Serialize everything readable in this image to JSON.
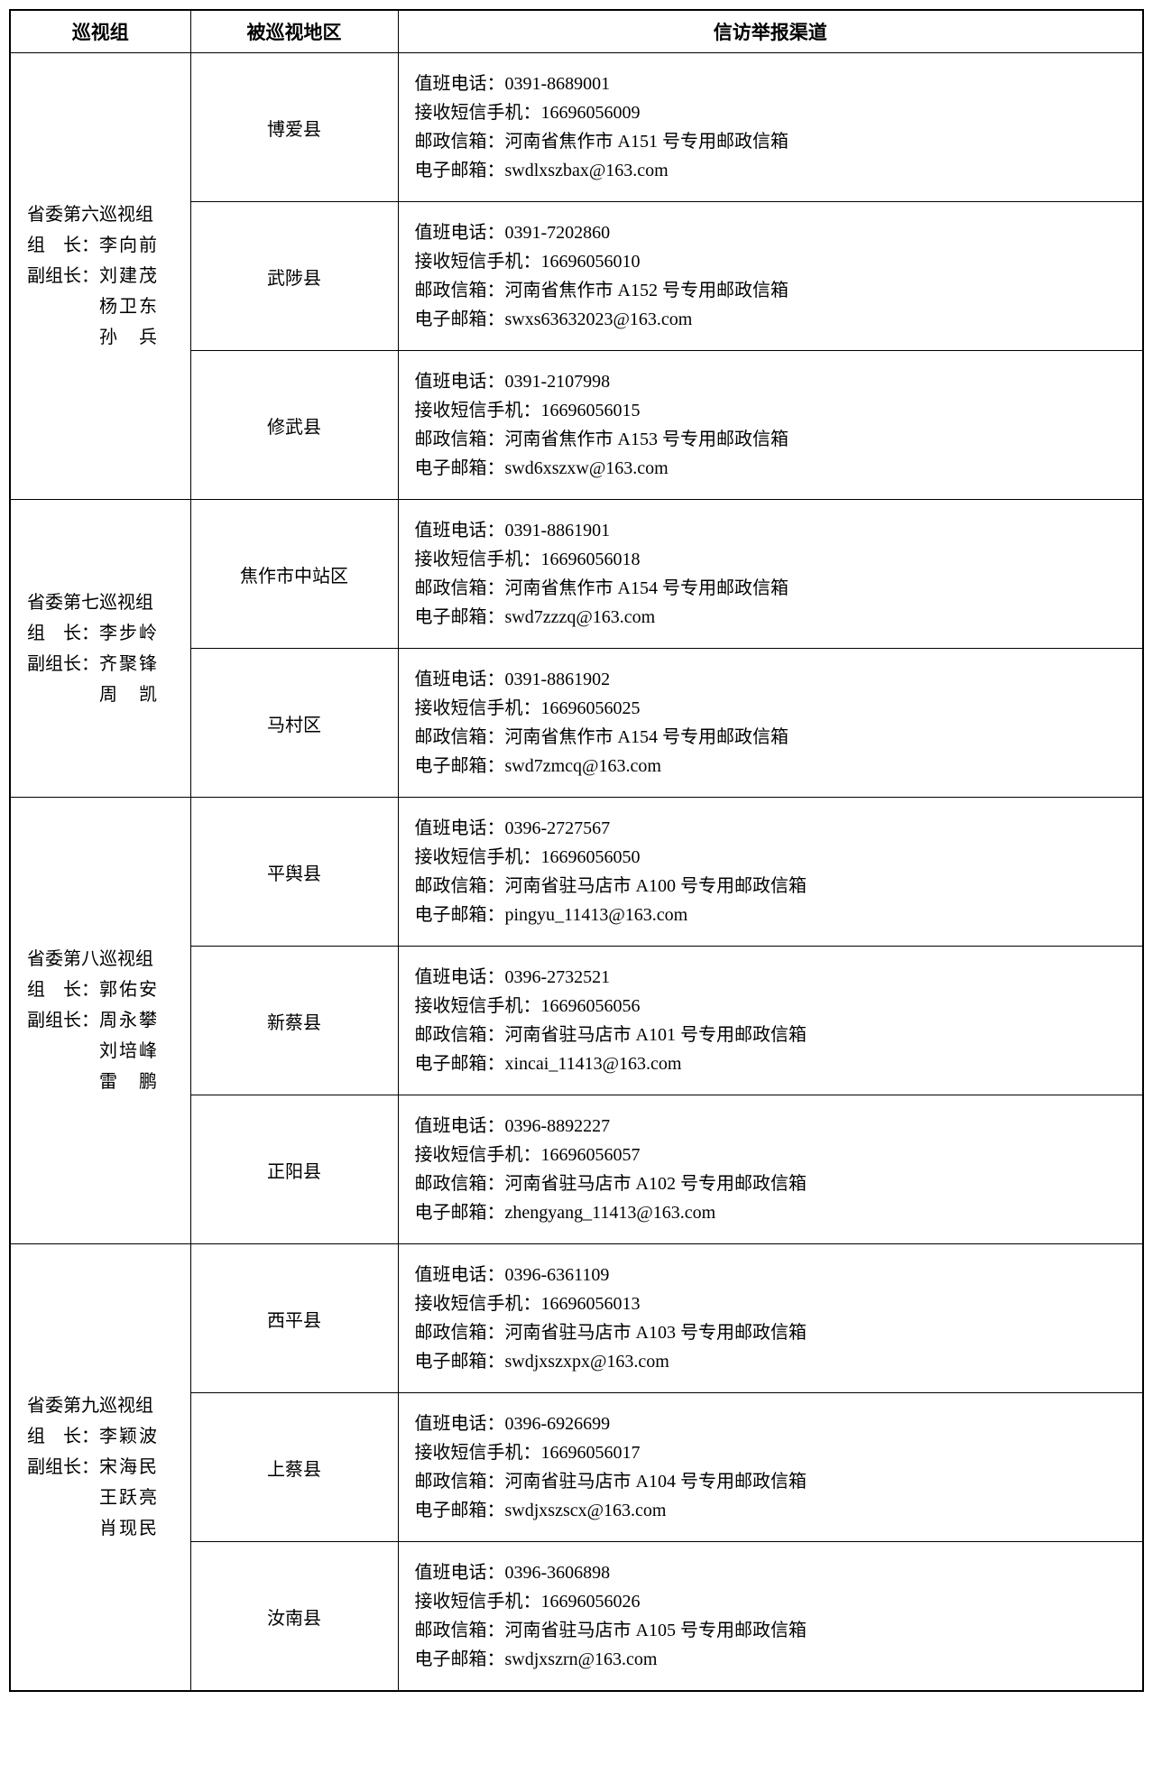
{
  "headers": {
    "group": "巡视组",
    "region": "被巡视地区",
    "channel": "信访举报渠道"
  },
  "labels": {
    "phone": "值班电话：",
    "sms": "接收短信手机：",
    "mailbox": "邮政信箱：",
    "email": "电子邮箱："
  },
  "groups": [
    {
      "title": "省委第六巡视组",
      "leader_label": "组　长：",
      "leader": "李向前",
      "deputy_label": "副组长：",
      "deputies": [
        "刘建茂",
        "杨卫东",
        "孙　兵"
      ],
      "regions": [
        {
          "name": "博爱县",
          "phone": "0391-8689001",
          "sms": "16696056009",
          "mailbox": "河南省焦作市 A151 号专用邮政信箱",
          "email": "swdlxszbax@163.com"
        },
        {
          "name": "武陟县",
          "phone": "0391-7202860",
          "sms": "16696056010",
          "mailbox": "河南省焦作市 A152 号专用邮政信箱",
          "email": "swxs63632023@163.com"
        },
        {
          "name": "修武县",
          "phone": "0391-2107998",
          "sms": "16696056015",
          "mailbox": "河南省焦作市 A153 号专用邮政信箱",
          "email": "swd6xszxw@163.com"
        }
      ]
    },
    {
      "title": "省委第七巡视组",
      "leader_label": "组　长：",
      "leader": "李步岭",
      "deputy_label": "副组长：",
      "deputies": [
        "齐聚锋",
        "周　凯"
      ],
      "regions": [
        {
          "name": "焦作市中站区",
          "phone": "0391-8861901",
          "sms": "16696056018",
          "mailbox": "河南省焦作市 A154 号专用邮政信箱",
          "email": "swd7zzzq@163.com"
        },
        {
          "name": "马村区",
          "phone": "0391-8861902",
          "sms": "16696056025",
          "mailbox": "河南省焦作市 A154 号专用邮政信箱",
          "email": "swd7zmcq@163.com"
        }
      ]
    },
    {
      "title": "省委第八巡视组",
      "leader_label": "组　长：",
      "leader": "郭佑安",
      "deputy_label": "副组长：",
      "deputies": [
        "周永攀",
        "刘培峰",
        "雷　鹏"
      ],
      "regions": [
        {
          "name": "平舆县",
          "phone": "0396-2727567",
          "sms": "16696056050",
          "mailbox": "河南省驻马店市 A100 号专用邮政信箱",
          "email": "pingyu_11413@163.com"
        },
        {
          "name": "新蔡县",
          "phone": "0396-2732521",
          "sms": "16696056056",
          "mailbox": "河南省驻马店市 A101 号专用邮政信箱",
          "email": "xincai_11413@163.com"
        },
        {
          "name": "正阳县",
          "phone": "0396-8892227",
          "sms": "16696056057",
          "mailbox": "河南省驻马店市 A102 号专用邮政信箱",
          "email": "zhengyang_11413@163.com"
        }
      ]
    },
    {
      "title": "省委第九巡视组",
      "leader_label": "组　长：",
      "leader": "李颖波",
      "deputy_label": "副组长：",
      "deputies": [
        "宋海民",
        "王跃亮",
        "肖现民"
      ],
      "regions": [
        {
          "name": "西平县",
          "phone": "0396-6361109",
          "sms": "16696056013",
          "mailbox": "河南省驻马店市 A103 号专用邮政信箱",
          "email": "swdjxszxpx@163.com"
        },
        {
          "name": "上蔡县",
          "phone": "0396-6926699",
          "sms": "16696056017",
          "mailbox": "河南省驻马店市 A104 号专用邮政信箱",
          "email": "swdjxszscx@163.com"
        },
        {
          "name": "汝南县",
          "phone": "0396-3606898",
          "sms": "16696056026",
          "mailbox": "河南省驻马店市 A105 号专用邮政信箱",
          "email": "swdjxszrn@163.com"
        }
      ]
    }
  ]
}
